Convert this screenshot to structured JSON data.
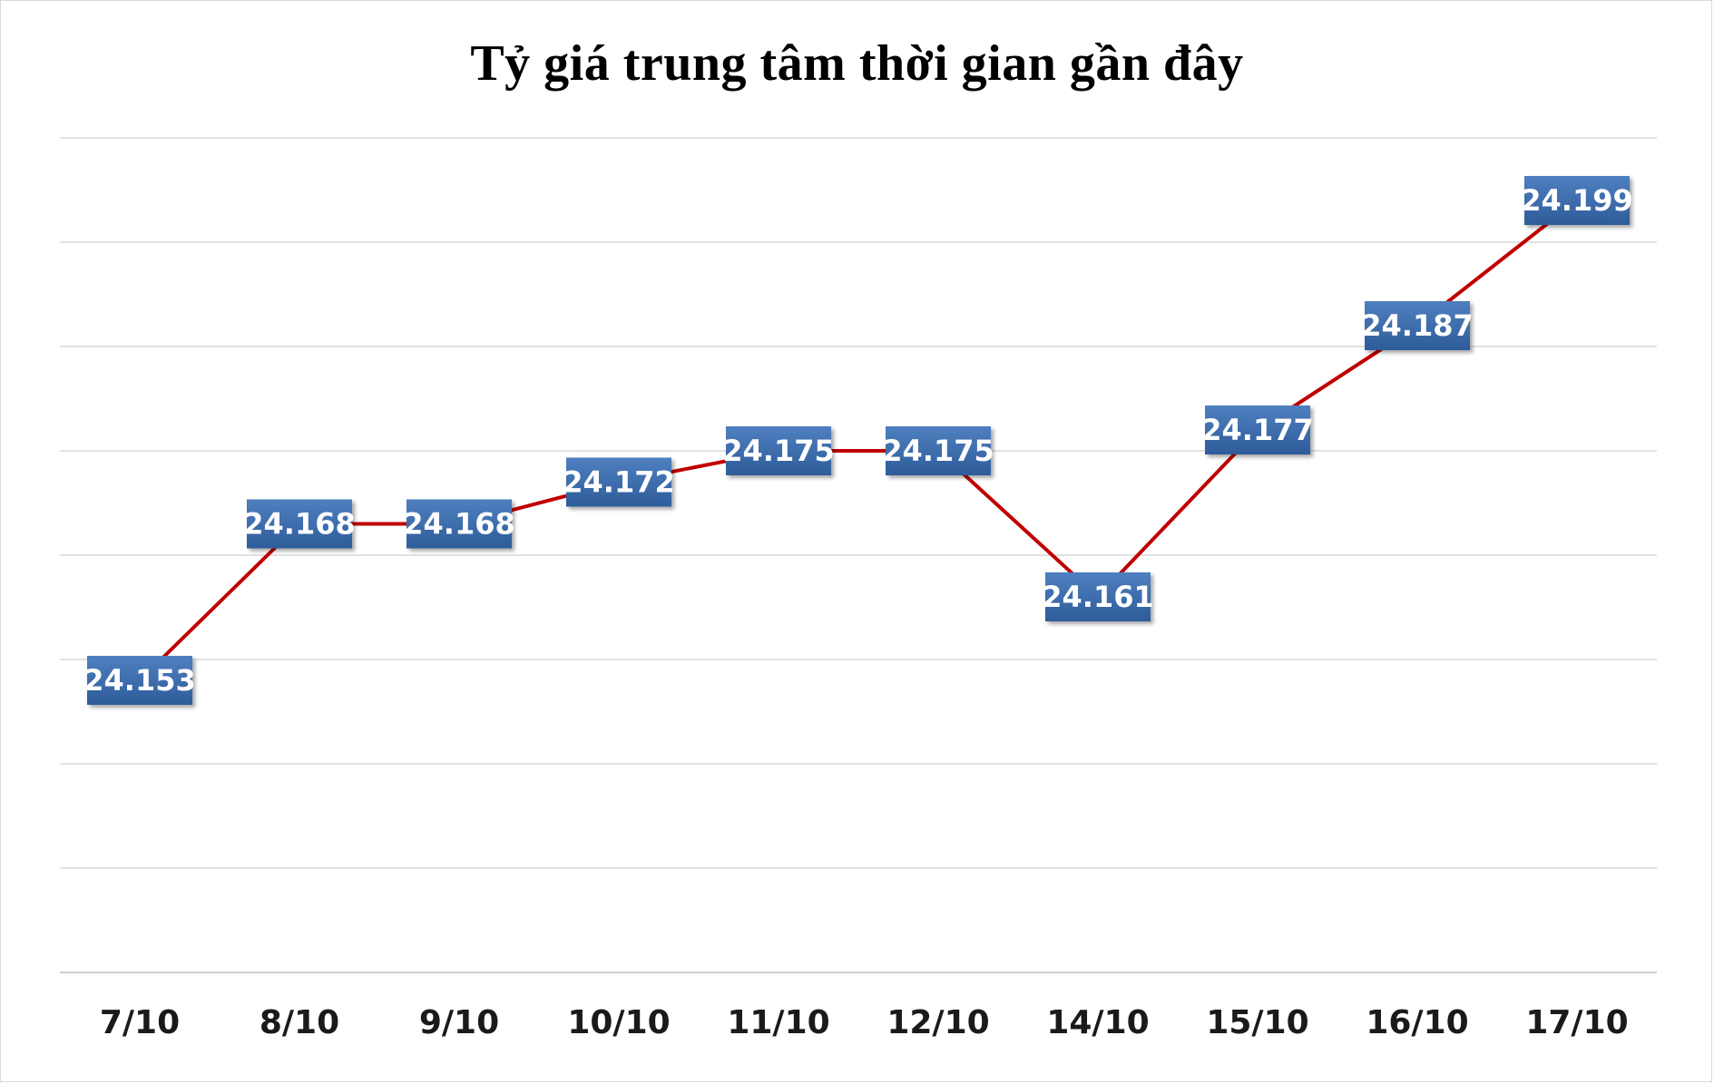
{
  "chart_data": {
    "type": "line",
    "title": "Tỷ giá trung tâm thời gian gần đây",
    "categories": [
      "7/10",
      "8/10",
      "9/10",
      "10/10",
      "11/10",
      "12/10",
      "14/10",
      "15/10",
      "16/10",
      "17/10"
    ],
    "series": [
      {
        "values": [
          24.153,
          24.168,
          24.168,
          24.172,
          24.175,
          24.175,
          24.161,
          24.177,
          24.187,
          24.199
        ],
        "labels": [
          "24.153",
          "24.168",
          "24.168",
          "24.172",
          "24.175",
          "24.175",
          "24.161",
          "24.177",
          "24.187",
          "24.199"
        ]
      }
    ],
    "ylim": [
      24.125,
      24.205
    ],
    "grid": true,
    "legend": "none",
    "colors": {
      "line": "#c00000",
      "label_bg_top": "#4f7fbf",
      "label_bg_bottom": "#2e5c9a",
      "grid": "#d9d9d9",
      "axis": "#bfbfbf"
    }
  }
}
